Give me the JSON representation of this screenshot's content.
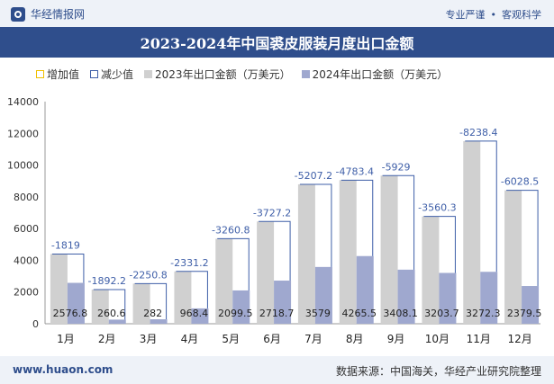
{
  "header": {
    "logo_text": "华经情报网",
    "tagline_left": "专业严谨",
    "tagline_sep": "•",
    "tagline_right": "客观科学"
  },
  "footer": {
    "website": "www.huaon.com",
    "source": "数据来源：中国海关，华经产业研究院整理"
  },
  "colors": {
    "brand": "#2f4e8c",
    "bar_2023": "#d0d0d0",
    "bar_2024": "#9fa8cf",
    "increase": "#f0c000",
    "decrease": "#3f5fa8"
  },
  "chart_data": {
    "type": "bar",
    "title": "2023-2024年中国裘皮服装月度出口金额",
    "legend_position": "top",
    "legend": [
      "增加值",
      "减少值",
      "2023年出口金额（万美元）",
      "2024年出口金额（万美元）"
    ],
    "categories": [
      "1月",
      "2月",
      "3月",
      "4月",
      "5月",
      "6月",
      "7月",
      "8月",
      "9月",
      "10月",
      "11月",
      "12月"
    ],
    "ylim": [
      0,
      14000
    ],
    "yticks": [
      0,
      2000,
      4000,
      6000,
      8000,
      10000,
      12000,
      14000
    ],
    "grid": false,
    "series": [
      {
        "name": "2023年出口金额（万美元）",
        "values": [
          4395.8,
          2152.8,
          2532.8,
          3299.6,
          5360.3,
          6445.9,
          8786.2,
          9048.9,
          9337.1,
          6764.0,
          11510.7,
          8408.0
        ]
      },
      {
        "name": "2024年出口金额（万美元）",
        "values": [
          2576.8,
          260.6,
          282,
          968.4,
          2099.5,
          2718.7,
          3579,
          4265.5,
          3408.1,
          3203.7,
          3272.3,
          2379.5
        ]
      }
    ],
    "change": {
      "name": "减少值",
      "values": [
        -1819,
        -1892.2,
        -2250.8,
        -2331.2,
        -3260.8,
        -3727.2,
        -5207.2,
        -4783.4,
        -5929,
        -3560.3,
        -8238.4,
        -6028.5
      ]
    }
  }
}
